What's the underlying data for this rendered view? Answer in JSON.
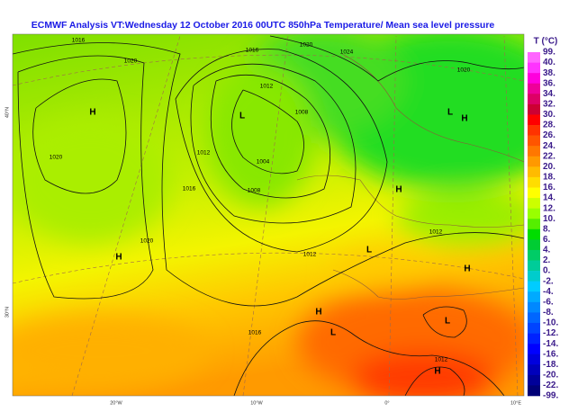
{
  "title": "ECMWF  Analysis VT:Wednesday 12 October 2016 00UTC 850hPa Temperature/  Mean sea level pressure",
  "legend": {
    "title": "T (°C)",
    "labels": [
      "99.",
      "40.",
      "38.",
      "36.",
      "34.",
      "32.",
      "30.",
      "28.",
      "26.",
      "24.",
      "22.",
      "20.",
      "18.",
      "16.",
      "14.",
      "12.",
      "10.",
      "8.",
      "6.",
      "4.",
      "2.",
      "0.",
      "-2.",
      "-4.",
      "-6.",
      "-8.",
      "-10.",
      "-12.",
      "-14.",
      "-16.",
      "-18.",
      "-20.",
      "-22.",
      "-99."
    ],
    "colors": [
      "#ff66ff",
      "#ff33ff",
      "#ff00dd",
      "#ee0099",
      "#dd0066",
      "#cc0033",
      "#ff0000",
      "#ff3300",
      "#ff5500",
      "#ff7700",
      "#ff9900",
      "#ffbb00",
      "#ffdd00",
      "#ffff00",
      "#ccff00",
      "#99ff00",
      "#55ee00",
      "#00dd00",
      "#00cc33",
      "#00cc66",
      "#00cc99",
      "#00cccc",
      "#00ccff",
      "#00aaff",
      "#0088ff",
      "#0066ff",
      "#0044ff",
      "#0022ff",
      "#0000ff",
      "#0000dd",
      "#0000bb",
      "#000099",
      "#000077"
    ]
  },
  "isobar_labels": [
    "1016",
    "1020",
    "1020",
    "1016",
    "1012",
    "1008",
    "1004",
    "1008",
    "1012",
    "1016",
    "1020",
    "1024",
    "1020",
    "1012",
    "1012",
    "1020",
    "1016",
    "1012"
  ],
  "centres": [
    "H",
    "H",
    "L",
    "L",
    "H",
    "H",
    "L",
    "H",
    "H",
    "L",
    "L",
    "H"
  ],
  "lat_labels": [
    "40°N",
    "30°N"
  ],
  "lon_labels": [
    "20°W",
    "10°W",
    "0°",
    "10°E"
  ]
}
